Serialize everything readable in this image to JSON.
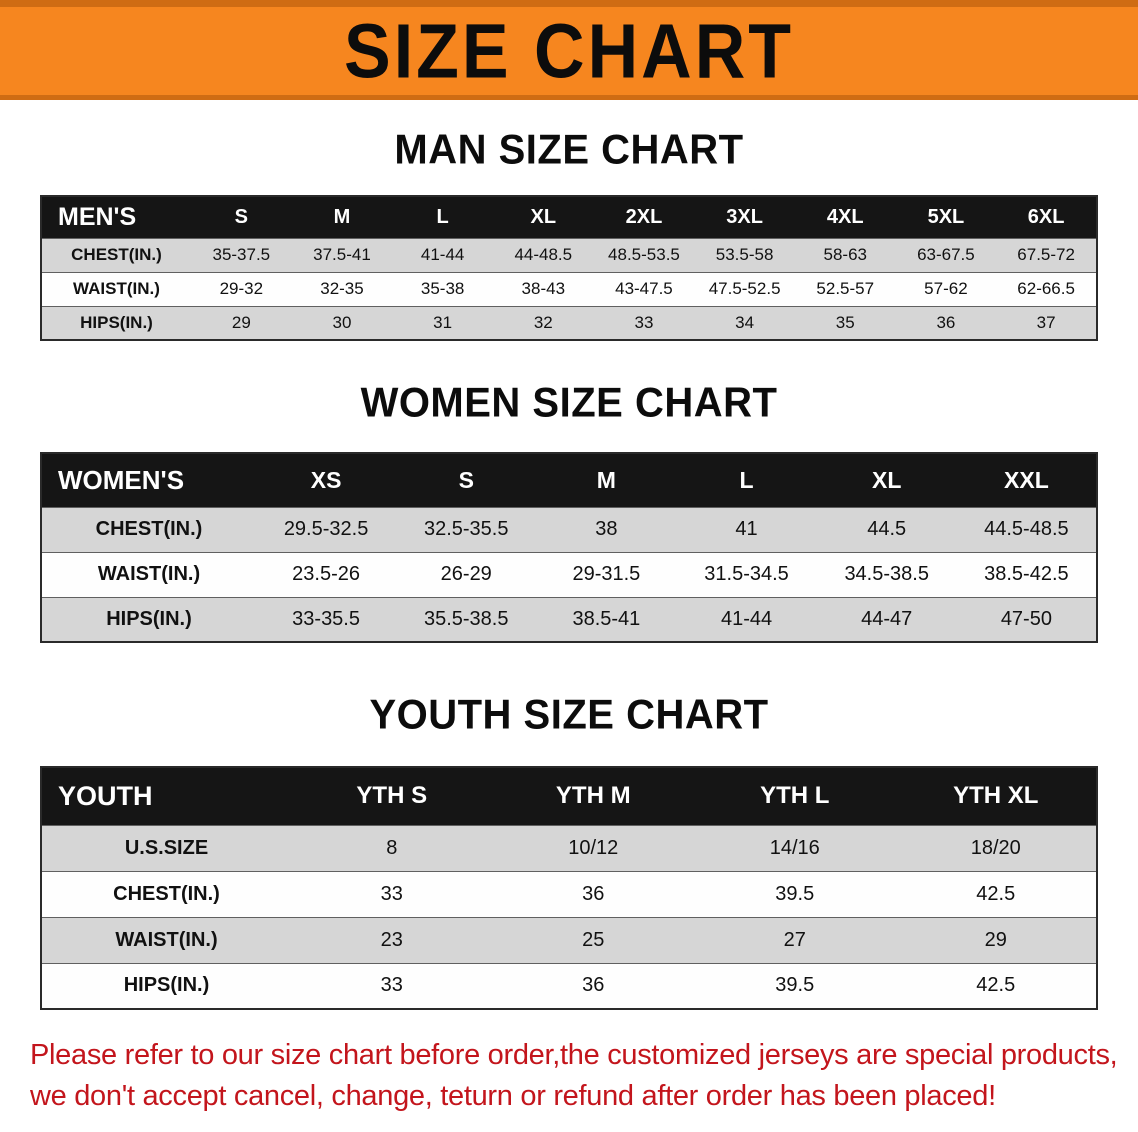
{
  "banner": {
    "title": "SIZE CHART",
    "bg_color": "#f6861f",
    "border_color": "#cf6c13",
    "text_color": "#0c0c0c"
  },
  "colors": {
    "table_header_bg": "#151515",
    "table_header_text": "#ffffff",
    "row_stripe_gray": "#d6d6d6",
    "notice_red": "#c3151c"
  },
  "chart_data": [
    {
      "type": "table",
      "title": "MAN SIZE CHART",
      "header": [
        "MEN'S",
        "S",
        "M",
        "L",
        "XL",
        "2XL",
        "3XL",
        "4XL",
        "5XL",
        "6XL"
      ],
      "rows": [
        {
          "label": "CHEST(IN.)",
          "values": [
            "35-37.5",
            "37.5-41",
            "41-44",
            "44-48.5",
            "48.5-53.5",
            "53.5-58",
            "58-63",
            "63-67.5",
            "67.5-72"
          ]
        },
        {
          "label": "WAIST(IN.)",
          "values": [
            "29-32",
            "32-35",
            "35-38",
            "38-43",
            "43-47.5",
            "47.5-52.5",
            "52.5-57",
            "57-62",
            "62-66.5"
          ]
        },
        {
          "label": "HIPS(IN.)",
          "values": [
            "29",
            "30",
            "31",
            "32",
            "33",
            "34",
            "35",
            "36",
            "37"
          ]
        }
      ]
    },
    {
      "type": "table",
      "title": "WOMEN SIZE CHART",
      "header": [
        "WOMEN'S",
        "XS",
        "S",
        "M",
        "L",
        "XL",
        "XXL"
      ],
      "rows": [
        {
          "label": "CHEST(IN.)",
          "values": [
            "29.5-32.5",
            "32.5-35.5",
            "38",
            "41",
            "44.5",
            "44.5-48.5"
          ]
        },
        {
          "label": "WAIST(IN.)",
          "values": [
            "23.5-26",
            "26-29",
            "29-31.5",
            "31.5-34.5",
            "34.5-38.5",
            "38.5-42.5"
          ]
        },
        {
          "label": "HIPS(IN.)",
          "values": [
            "33-35.5",
            "35.5-38.5",
            "38.5-41",
            "41-44",
            "44-47",
            "47-50"
          ]
        }
      ]
    },
    {
      "type": "table",
      "title": "YOUTH SIZE CHART",
      "header": [
        "YOUTH",
        "YTH S",
        "YTH M",
        "YTH L",
        "YTH XL"
      ],
      "rows": [
        {
          "label": "U.S.SIZE",
          "values": [
            "8",
            "10/12",
            "14/16",
            "18/20"
          ]
        },
        {
          "label": "CHEST(IN.)",
          "values": [
            "33",
            "36",
            "39.5",
            "42.5"
          ]
        },
        {
          "label": "WAIST(IN.)",
          "values": [
            "23",
            "25",
            "27",
            "29"
          ]
        },
        {
          "label": "HIPS(IN.)",
          "values": [
            "33",
            "36",
            "39.5",
            "42.5"
          ]
        }
      ]
    }
  ],
  "footer": {
    "line1": "Please refer to our size chart before order,the customized jerseys are special products,",
    "line2": "we don't accept cancel, change, teturn or refund after order has been placed!"
  }
}
